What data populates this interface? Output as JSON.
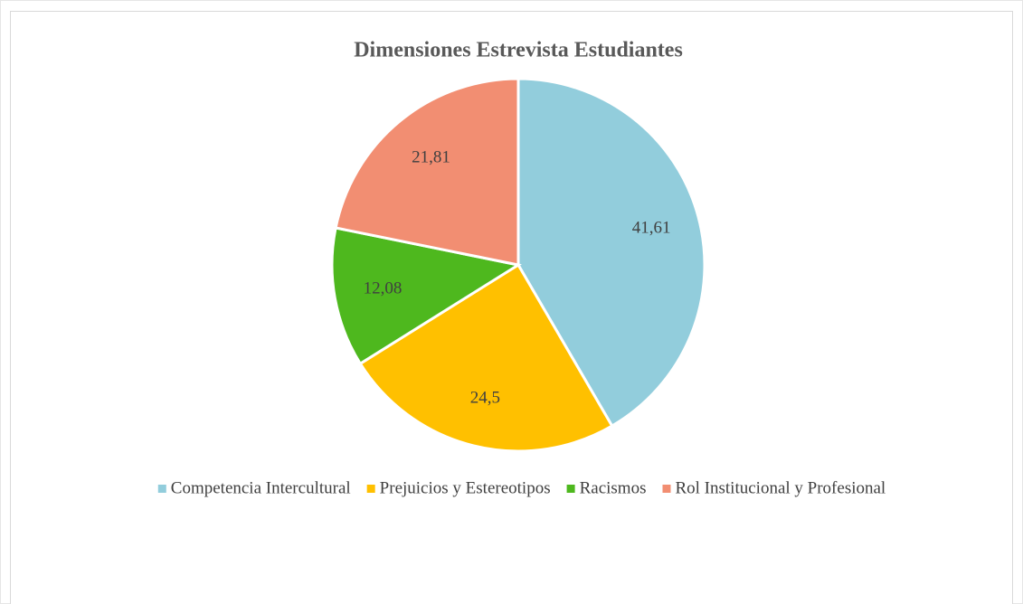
{
  "chart_data": {
    "type": "pie",
    "title": "Dimensiones Estrevista Estudiantes",
    "categories": [
      "Competencia Intercultural",
      "Prejuicios y Estereotipos",
      "Racismos",
      "Rol Institucional y Profesional"
    ],
    "values": [
      41.61,
      24.5,
      12.08,
      21.81
    ],
    "value_labels": [
      "41,61",
      "24,5",
      "12,08",
      "21,81"
    ],
    "colors": [
      "#92cddc",
      "#ffc000",
      "#4eb81e",
      "#f28e72"
    ],
    "legend": "bottom"
  }
}
